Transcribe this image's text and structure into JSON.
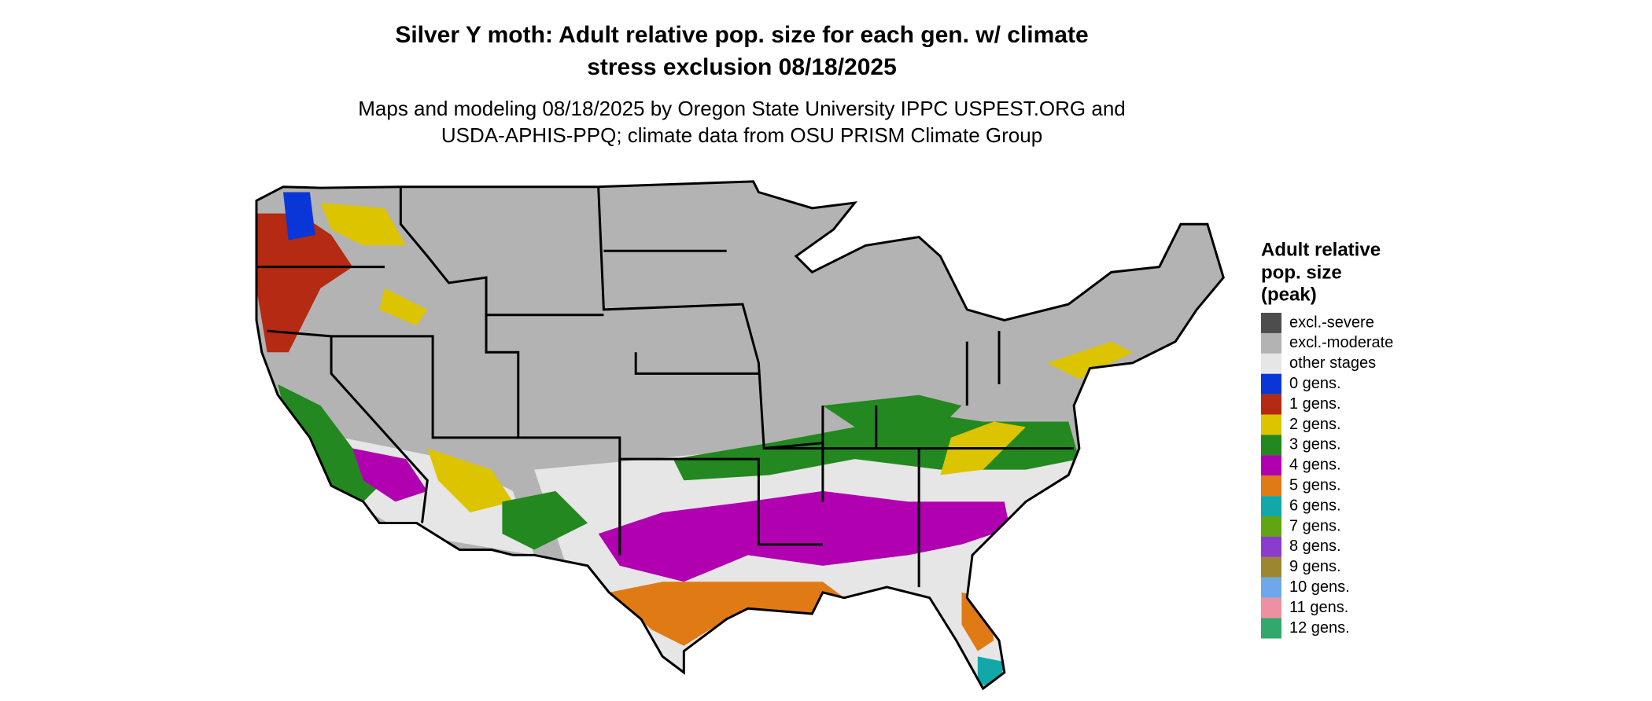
{
  "header": {
    "title": [
      "Silver Y moth: Adult relative pop. size for each gen. w/ climate",
      "stress exclusion 08/18/2025"
    ],
    "subtitle": [
      "Maps and modeling 08/18/2025 by Oregon State University IPPC USPEST.ORG and",
      "USDA-APHIS-PPQ; climate data from OSU PRISM Climate Group"
    ]
  },
  "legend": {
    "title": [
      "Adult relative",
      "pop. size",
      "(peak)"
    ],
    "items": [
      {
        "label": "excl.-severe",
        "color": "#4d4d4d"
      },
      {
        "label": "excl.-moderate",
        "color": "#b3b3b3"
      },
      {
        "label": "other stages",
        "color": "#e6e6e6"
      },
      {
        "label": "0 gens.",
        "color": "#0a36d8"
      },
      {
        "label": "1 gens.",
        "color": "#b42a12"
      },
      {
        "label": "2 gens.",
        "color": "#dcc400"
      },
      {
        "label": "3 gens.",
        "color": "#23881f"
      },
      {
        "label": "4 gens.",
        "color": "#b000b0"
      },
      {
        "label": "5 gens.",
        "color": "#e07a14"
      },
      {
        "label": "6 gens.",
        "color": "#12a8a8"
      },
      {
        "label": "7 gens.",
        "color": "#62a414"
      },
      {
        "label": "8 gens.",
        "color": "#8b3ccf"
      },
      {
        "label": "9 gens.",
        "color": "#9c8730"
      },
      {
        "label": "10 gens.",
        "color": "#6fa8ea"
      },
      {
        "label": "11 gens.",
        "color": "#ee90a2"
      },
      {
        "label": "12 gens.",
        "color": "#33a86c"
      }
    ]
  }
}
